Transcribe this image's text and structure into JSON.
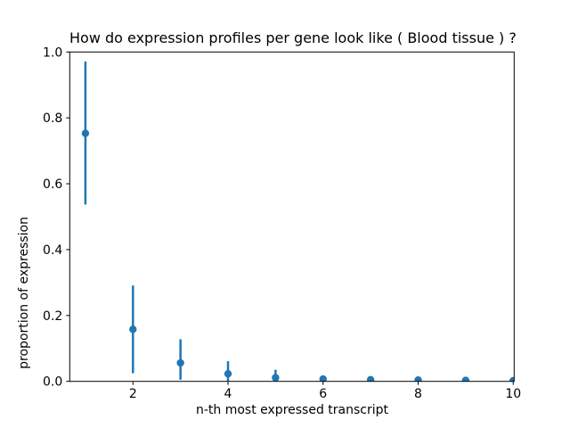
{
  "chart_data": {
    "type": "scatter",
    "subtype": "errorbar",
    "title": "How do expression profiles per gene look like ( Blood tissue ) ?",
    "xlabel": "n-th most expressed transcript",
    "ylabel": "proportion of expression",
    "x": [
      1,
      2,
      3,
      4,
      5,
      6,
      7,
      8,
      9,
      10
    ],
    "y": [
      0.753,
      0.158,
      0.056,
      0.023,
      0.011,
      0.007,
      0.005,
      0.004,
      0.003,
      0.002
    ],
    "err_low": [
      0.537,
      0.025,
      0.005,
      0.002,
      0.001,
      0.001,
      0.001,
      0.0,
      0.0,
      0.0
    ],
    "err_high": [
      0.971,
      0.291,
      0.128,
      0.061,
      0.035,
      0.014,
      0.011,
      0.009,
      0.008,
      0.006
    ],
    "xtick_labels": [
      "2",
      "4",
      "6",
      "8",
      "10"
    ],
    "xtick_values": [
      2,
      4,
      6,
      8,
      10
    ],
    "ytick_labels": [
      "0.0",
      "0.2",
      "0.4",
      "0.6",
      "0.8",
      "1.0"
    ],
    "ytick_values": [
      0,
      0.2,
      0.4,
      0.6,
      0.8,
      1.0
    ],
    "xlim": [
      0.67,
      10.02
    ],
    "ylim": [
      0,
      1
    ],
    "marker_color": "#1f77b4",
    "axis_color": "#000000",
    "text_color": "#000000",
    "background": "#ffffff",
    "grid": false,
    "legend_position": "none"
  }
}
